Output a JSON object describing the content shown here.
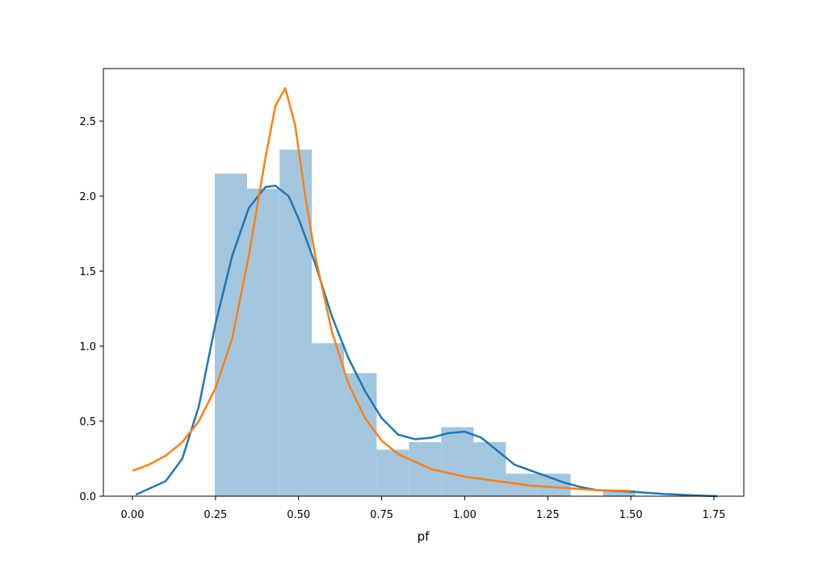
{
  "chart_data": {
    "type": "histogram",
    "x_label": "pf",
    "bins": [
      0.248,
      0.345,
      0.443,
      0.54,
      0.637,
      0.735,
      0.832,
      0.929,
      1.027,
      1.124,
      1.222,
      1.319,
      1.416,
      1.514
    ],
    "values": [
      2.15,
      2.05,
      2.31,
      1.02,
      0.82,
      0.31,
      0.36,
      0.46,
      0.36,
      0.15,
      0.15,
      0,
      0.04
    ],
    "color": "#a3c6df",
    "series": [
      {
        "color": "#1f77b4",
        "x": [
          0.01,
          0.1,
          0.15,
          0.2,
          0.25,
          0.3,
          0.35,
          0.4,
          0.43,
          0.47,
          0.5,
          0.55,
          0.6,
          0.65,
          0.7,
          0.75,
          0.8,
          0.85,
          0.9,
          0.95,
          1.0,
          1.05,
          1.1,
          1.15,
          1.2,
          1.25,
          1.3,
          1.35,
          1.4,
          1.5,
          1.6,
          1.7,
          1.76
        ],
        "values": [
          0.01,
          0.1,
          0.25,
          0.6,
          1.15,
          1.6,
          1.92,
          2.06,
          2.07,
          2.0,
          1.85,
          1.55,
          1.2,
          0.92,
          0.7,
          0.52,
          0.41,
          0.38,
          0.39,
          0.42,
          0.43,
          0.39,
          0.3,
          0.21,
          0.17,
          0.13,
          0.09,
          0.06,
          0.04,
          0.03,
          0.015,
          0.005,
          0.0
        ]
      },
      {
        "color": "#ff7f0e",
        "x": [
          0,
          0.05,
          0.1,
          0.15,
          0.2,
          0.25,
          0.3,
          0.35,
          0.4,
          0.43,
          0.46,
          0.49,
          0.52,
          0.55,
          0.6,
          0.65,
          0.7,
          0.75,
          0.8,
          0.9,
          1.0,
          1.1,
          1.2,
          1.3,
          1.4,
          1.5
        ],
        "values": [
          0.17,
          0.21,
          0.27,
          0.36,
          0.5,
          0.72,
          1.05,
          1.6,
          2.25,
          2.6,
          2.72,
          2.47,
          2.0,
          1.6,
          1.1,
          0.75,
          0.52,
          0.37,
          0.28,
          0.18,
          0.13,
          0.1,
          0.07,
          0.055,
          0.04,
          0.035
        ]
      }
    ],
    "xlim": [
      -0.0875,
      1.84
    ],
    "ylim": [
      0,
      2.85
    ],
    "xticks": [
      {
        "value": 0,
        "label": "0.00"
      },
      {
        "value": 0.25,
        "label": "0.25"
      },
      {
        "value": 0.5,
        "label": "0.50"
      },
      {
        "value": 0.75,
        "label": "0.75"
      },
      {
        "value": 1.0,
        "label": "1.00"
      },
      {
        "value": 1.25,
        "label": "1.25"
      },
      {
        "value": 1.5,
        "label": "1.50"
      },
      {
        "value": 1.75,
        "label": "1.75"
      }
    ],
    "yticks": [
      {
        "value": 0,
        "label": "0.0"
      },
      {
        "value": 0.5,
        "label": "0.5"
      },
      {
        "value": 1.0,
        "label": "1.0"
      },
      {
        "value": 1.5,
        "label": "1.5"
      },
      {
        "value": 2.0,
        "label": "2.0"
      },
      {
        "value": 2.5,
        "label": "2.5"
      }
    ]
  }
}
